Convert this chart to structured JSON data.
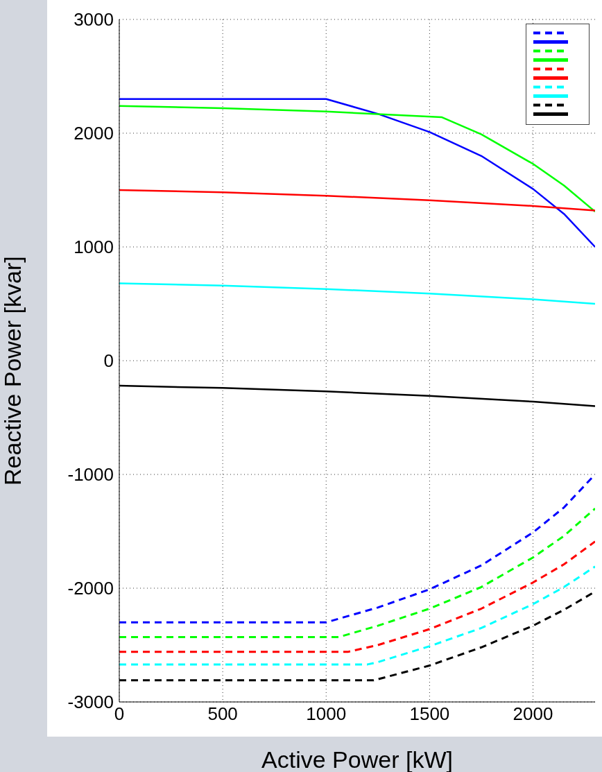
{
  "chart_data": {
    "type": "line",
    "xlabel": "Active Power [kW]",
    "ylabel": "Reactive Power [kvar]",
    "xlim": [
      0,
      2300
    ],
    "ylim": [
      -3000,
      3000
    ],
    "xticks": [
      0,
      500,
      1000,
      1500,
      2000
    ],
    "yticks": [
      -3000,
      -2000,
      -1000,
      0,
      1000,
      2000,
      3000
    ],
    "grid": true,
    "marker": "none",
    "series": [
      {
        "color": "#0000ff",
        "line_style": "dashed",
        "x": [
          0,
          1000,
          1250,
          1500,
          1750,
          2000,
          2150,
          2300
        ],
        "values": [
          -2300,
          -2300,
          -2170,
          -2010,
          -1800,
          -1510,
          -1290,
          -1000
        ]
      },
      {
        "color": "#0000ff",
        "line_style": "solid",
        "x": [
          0,
          1000,
          1250,
          1500,
          1750,
          2000,
          2150,
          2300
        ],
        "values": [
          2300,
          2300,
          2170,
          2010,
          1800,
          1510,
          1290,
          1000
        ]
      },
      {
        "color": "#00ff00",
        "line_style": "dashed",
        "x": [
          0,
          1060,
          1250,
          1500,
          1750,
          2000,
          2150,
          2300
        ],
        "values": [
          -2430,
          -2430,
          -2330,
          -2180,
          -1990,
          -1730,
          -1540,
          -1300
        ]
      },
      {
        "color": "#00ff00",
        "line_style": "solid",
        "x": [
          0,
          500,
          1000,
          1560,
          1750,
          2000,
          2150,
          2300
        ],
        "values": [
          2240,
          2220,
          2190,
          2140,
          1990,
          1730,
          1540,
          1310
        ]
      },
      {
        "color": "#ff0000",
        "line_style": "dashed",
        "x": [
          0,
          1105,
          1250,
          1500,
          1750,
          2000,
          2150,
          2300
        ],
        "values": [
          -2560,
          -2560,
          -2500,
          -2360,
          -2180,
          -1950,
          -1790,
          -1590
        ]
      },
      {
        "color": "#ff0000",
        "line_style": "solid",
        "x": [
          0,
          500,
          1000,
          1500,
          2000,
          2300
        ],
        "values": [
          1500,
          1480,
          1450,
          1410,
          1360,
          1320
        ]
      },
      {
        "color": "#00ffff",
        "line_style": "dashed",
        "x": [
          0,
          1200,
          1250,
          1500,
          1750,
          2000,
          2150,
          2300
        ],
        "values": [
          -2670,
          -2670,
          -2650,
          -2510,
          -2350,
          -2140,
          -1990,
          -1810
        ]
      },
      {
        "color": "#00ffff",
        "line_style": "solid",
        "x": [
          0,
          500,
          1000,
          1500,
          2000,
          2300
        ],
        "values": [
          680,
          660,
          630,
          590,
          540,
          500
        ]
      },
      {
        "color": "#000000",
        "line_style": "dashed",
        "x": [
          0,
          1230,
          1500,
          1750,
          2000,
          2150,
          2300
        ],
        "values": [
          -2810,
          -2810,
          -2680,
          -2520,
          -2330,
          -2190,
          -2030
        ]
      },
      {
        "color": "#000000",
        "line_style": "solid",
        "x": [
          0,
          500,
          1000,
          1500,
          2000,
          2300
        ],
        "values": [
          -220,
          -240,
          -270,
          -310,
          -360,
          -400
        ]
      }
    ]
  }
}
